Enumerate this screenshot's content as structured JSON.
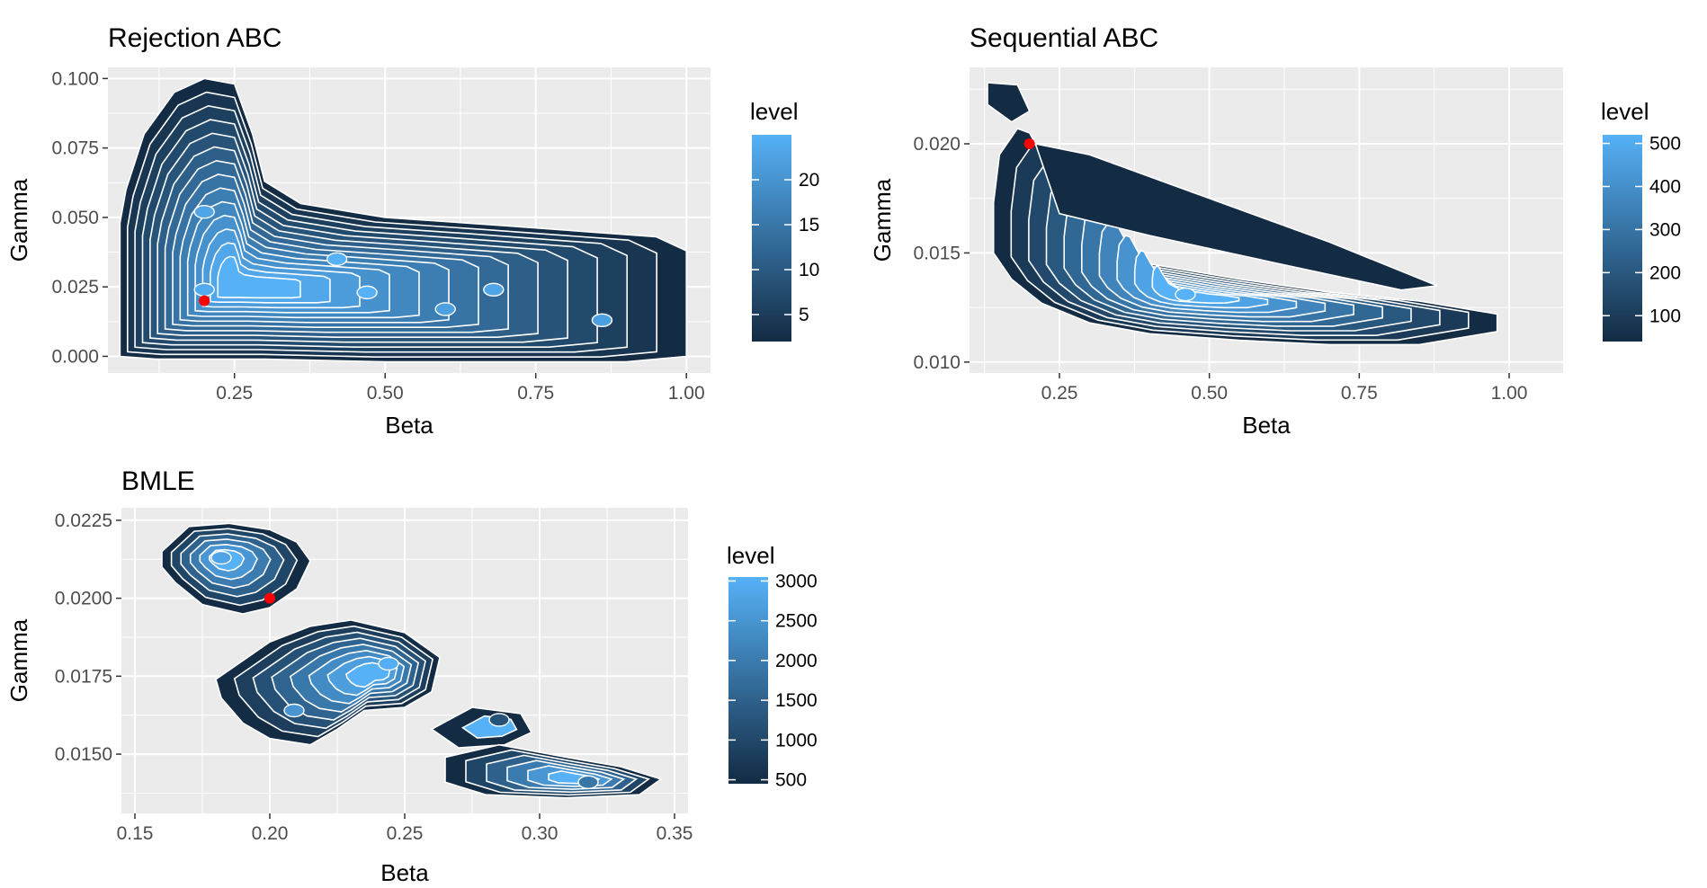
{
  "chart_data": [
    {
      "type": "contour",
      "title": "Rejection ABC",
      "xlabel": "Beta",
      "ylabel": "Gamma",
      "xlim": [
        0.04,
        1.04
      ],
      "ylim": [
        -0.006,
        0.104
      ],
      "xticks": [
        0.25,
        0.5,
        0.75,
        1.0
      ],
      "xtick_labels": [
        "0.25",
        "0.50",
        "0.75",
        "1.00"
      ],
      "yticks": [
        0.0,
        0.025,
        0.05,
        0.075,
        0.1
      ],
      "ytick_labels": [
        "0.000",
        "0.025",
        "0.050",
        "0.075",
        "0.100"
      ],
      "legend": {
        "title": "level",
        "placement": "right",
        "range": [
          2,
          25
        ],
        "ticks": [
          5,
          10,
          15,
          20
        ],
        "tick_labels": [
          "5",
          "10",
          "15",
          "20"
        ]
      },
      "marker": {
        "x": 0.2,
        "y": 0.02,
        "color": "#ff0000"
      },
      "grid": true,
      "density_peaks": [
        {
          "x": 0.2,
          "y": 0.052,
          "level": 23
        },
        {
          "x": 0.2,
          "y": 0.024,
          "level": 24
        },
        {
          "x": 0.42,
          "y": 0.035,
          "level": 25
        },
        {
          "x": 0.47,
          "y": 0.023,
          "level": 25
        },
        {
          "x": 0.6,
          "y": 0.017,
          "level": 22
        },
        {
          "x": 0.68,
          "y": 0.024,
          "level": 23
        },
        {
          "x": 0.86,
          "y": 0.013,
          "level": 22
        }
      ]
    },
    {
      "type": "contour",
      "title": "Sequential ABC",
      "xlabel": "Beta",
      "ylabel": "Gamma",
      "xlim": [
        0.1,
        1.09
      ],
      "ylim": [
        0.0095,
        0.0235
      ],
      "xticks": [
        0.25,
        0.5,
        0.75,
        1.0
      ],
      "xtick_labels": [
        "0.25",
        "0.50",
        "0.75",
        "1.00"
      ],
      "yticks": [
        0.01,
        0.015,
        0.02
      ],
      "ytick_labels": [
        "0.010",
        "0.015",
        "0.020"
      ],
      "legend": {
        "title": "level",
        "placement": "right",
        "range": [
          40,
          520
        ],
        "ticks": [
          100,
          200,
          300,
          400,
          500
        ],
        "tick_labels": [
          "100",
          "200",
          "300",
          "400",
          "500"
        ]
      },
      "marker": {
        "x": 0.2,
        "y": 0.02,
        "color": "#ff0000"
      },
      "grid": true,
      "density_peaks": [
        {
          "x": 0.46,
          "y": 0.0131,
          "level": 520
        }
      ]
    },
    {
      "type": "contour",
      "title": "BMLE",
      "xlabel": "Beta",
      "ylabel": "Gamma",
      "xlim": [
        0.145,
        0.355
      ],
      "ylim": [
        0.0131,
        0.0229
      ],
      "xticks": [
        0.15,
        0.2,
        0.25,
        0.3,
        0.35
      ],
      "xtick_labels": [
        "0.15",
        "0.20",
        "0.25",
        "0.30",
        "0.35"
      ],
      "yticks": [
        0.015,
        0.0175,
        0.02,
        0.0225
      ],
      "ytick_labels": [
        "0.0150",
        "0.0175",
        "0.0200",
        "0.0225"
      ],
      "legend": {
        "title": "level",
        "placement": "right",
        "range": [
          450,
          3050
        ],
        "ticks": [
          500,
          1000,
          1500,
          2000,
          2500,
          3000
        ],
        "tick_labels": [
          "500",
          "1000",
          "1500",
          "2000",
          "2500",
          "3000"
        ]
      },
      "marker": {
        "x": 0.2,
        "y": 0.02,
        "color": "#ff0000"
      },
      "grid": true,
      "density_peaks": [
        {
          "x": 0.182,
          "y": 0.0213,
          "level": 2800
        },
        {
          "x": 0.244,
          "y": 0.0179,
          "level": 3000
        },
        {
          "x": 0.209,
          "y": 0.0164,
          "level": 2500
        },
        {
          "x": 0.285,
          "y": 0.0161,
          "level": 1200
        },
        {
          "x": 0.318,
          "y": 0.0141,
          "level": 1900
        }
      ]
    }
  ],
  "colors": {
    "panel_background": "#ebebeb",
    "grid": "#ffffff",
    "contour_line": "#ffffff",
    "low": "#132b43",
    "high": "#56b1f7",
    "marker": "#ff0000"
  }
}
